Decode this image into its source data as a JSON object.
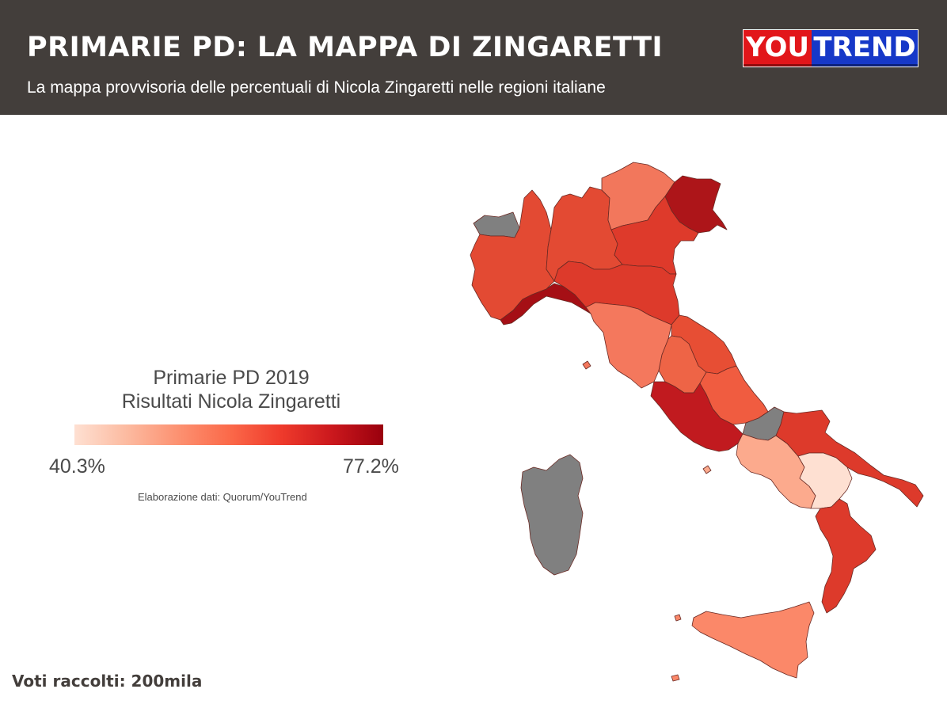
{
  "header": {
    "title": "PRIMARIE PD: LA MAPPA DI ZINGARETTI",
    "subtitle": "La mappa provvisoria delle percentuali di Nicola Zingaretti nelle regioni italiane",
    "logo_left": "YOU",
    "logo_right": "TREND",
    "background_color": "#433e3b"
  },
  "legend": {
    "title_line1": "Primarie PD 2019",
    "title_line2": "Risultati Nicola Zingaretti",
    "min_label": "40.3%",
    "max_label": "77.2%",
    "scale_colors": [
      "#fee0d2",
      "#fcbba1",
      "#fc9272",
      "#fb6a4a",
      "#ef3b2c",
      "#cb181d",
      "#99000d"
    ]
  },
  "source": "Elaborazione dati: Quorum/YouTrend",
  "votes": "Voti raccolti: 200mila",
  "map": {
    "no_data_color": "#808080",
    "regions": [
      {
        "name": "valle-d-aosta",
        "fill": "#808080"
      },
      {
        "name": "piemonte",
        "fill": "#e34a33"
      },
      {
        "name": "lombardia",
        "fill": "#e34a33"
      },
      {
        "name": "trentino-alto-adige",
        "fill": "#f2775c"
      },
      {
        "name": "veneto",
        "fill": "#de3a2b"
      },
      {
        "name": "friuli-venezia-giulia",
        "fill": "#ad1519"
      },
      {
        "name": "liguria",
        "fill": "#a50f15"
      },
      {
        "name": "emilia-romagna",
        "fill": "#dd3a2b"
      },
      {
        "name": "toscana",
        "fill": "#f4785d"
      },
      {
        "name": "marche",
        "fill": "#e74e34"
      },
      {
        "name": "umbria",
        "fill": "#ee6446"
      },
      {
        "name": "lazio",
        "fill": "#c11a1f"
      },
      {
        "name": "abruzzo",
        "fill": "#f05c40"
      },
      {
        "name": "molise",
        "fill": "#808080"
      },
      {
        "name": "campania",
        "fill": "#fcaa8d"
      },
      {
        "name": "puglia",
        "fill": "#dd3a2b"
      },
      {
        "name": "basilicata",
        "fill": "#fee0d2"
      },
      {
        "name": "calabria",
        "fill": "#dd3a2b"
      },
      {
        "name": "sicilia",
        "fill": "#fb8869"
      },
      {
        "name": "sardegna",
        "fill": "#808080"
      }
    ]
  }
}
